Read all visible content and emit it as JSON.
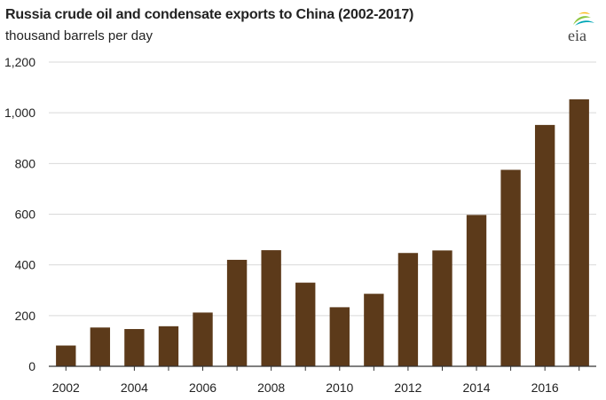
{
  "title": "Russia crude oil and condensate exports to China (2002-2017)",
  "subtitle": "thousand barrels per day",
  "logo": {
    "text": "eia",
    "colors": {
      "swoosh_green": "#8dc63f",
      "swoosh_teal": "#00a6b6",
      "swoosh_yellow": "#fdb913"
    }
  },
  "colors": {
    "bar": "#5c3a1a",
    "grid": "#d9d9d9",
    "axis": "#333333",
    "text": "#222222"
  },
  "chart_data": {
    "type": "bar",
    "title": "Russia crude oil and condensate exports to China (2002-2017)",
    "ylabel": "thousand barrels per day",
    "xlabel": "",
    "categories": [
      2002,
      2003,
      2004,
      2005,
      2006,
      2007,
      2008,
      2009,
      2010,
      2011,
      2012,
      2013,
      2014,
      2015,
      2016,
      2017
    ],
    "values": [
      82,
      153,
      147,
      158,
      212,
      420,
      458,
      330,
      233,
      286,
      447,
      457,
      597,
      775,
      952,
      1053
    ],
    "ylim": [
      0,
      1200
    ],
    "yticks": [
      0,
      200,
      400,
      600,
      800,
      1000,
      1200
    ],
    "ytick_labels": [
      "0",
      "200",
      "400",
      "600",
      "800",
      "1,000",
      "1,200"
    ],
    "xtick_labels": [
      "2002",
      "2004",
      "2006",
      "2008",
      "2010",
      "2012",
      "2014",
      "2016"
    ],
    "grid": true,
    "legend": "none"
  }
}
